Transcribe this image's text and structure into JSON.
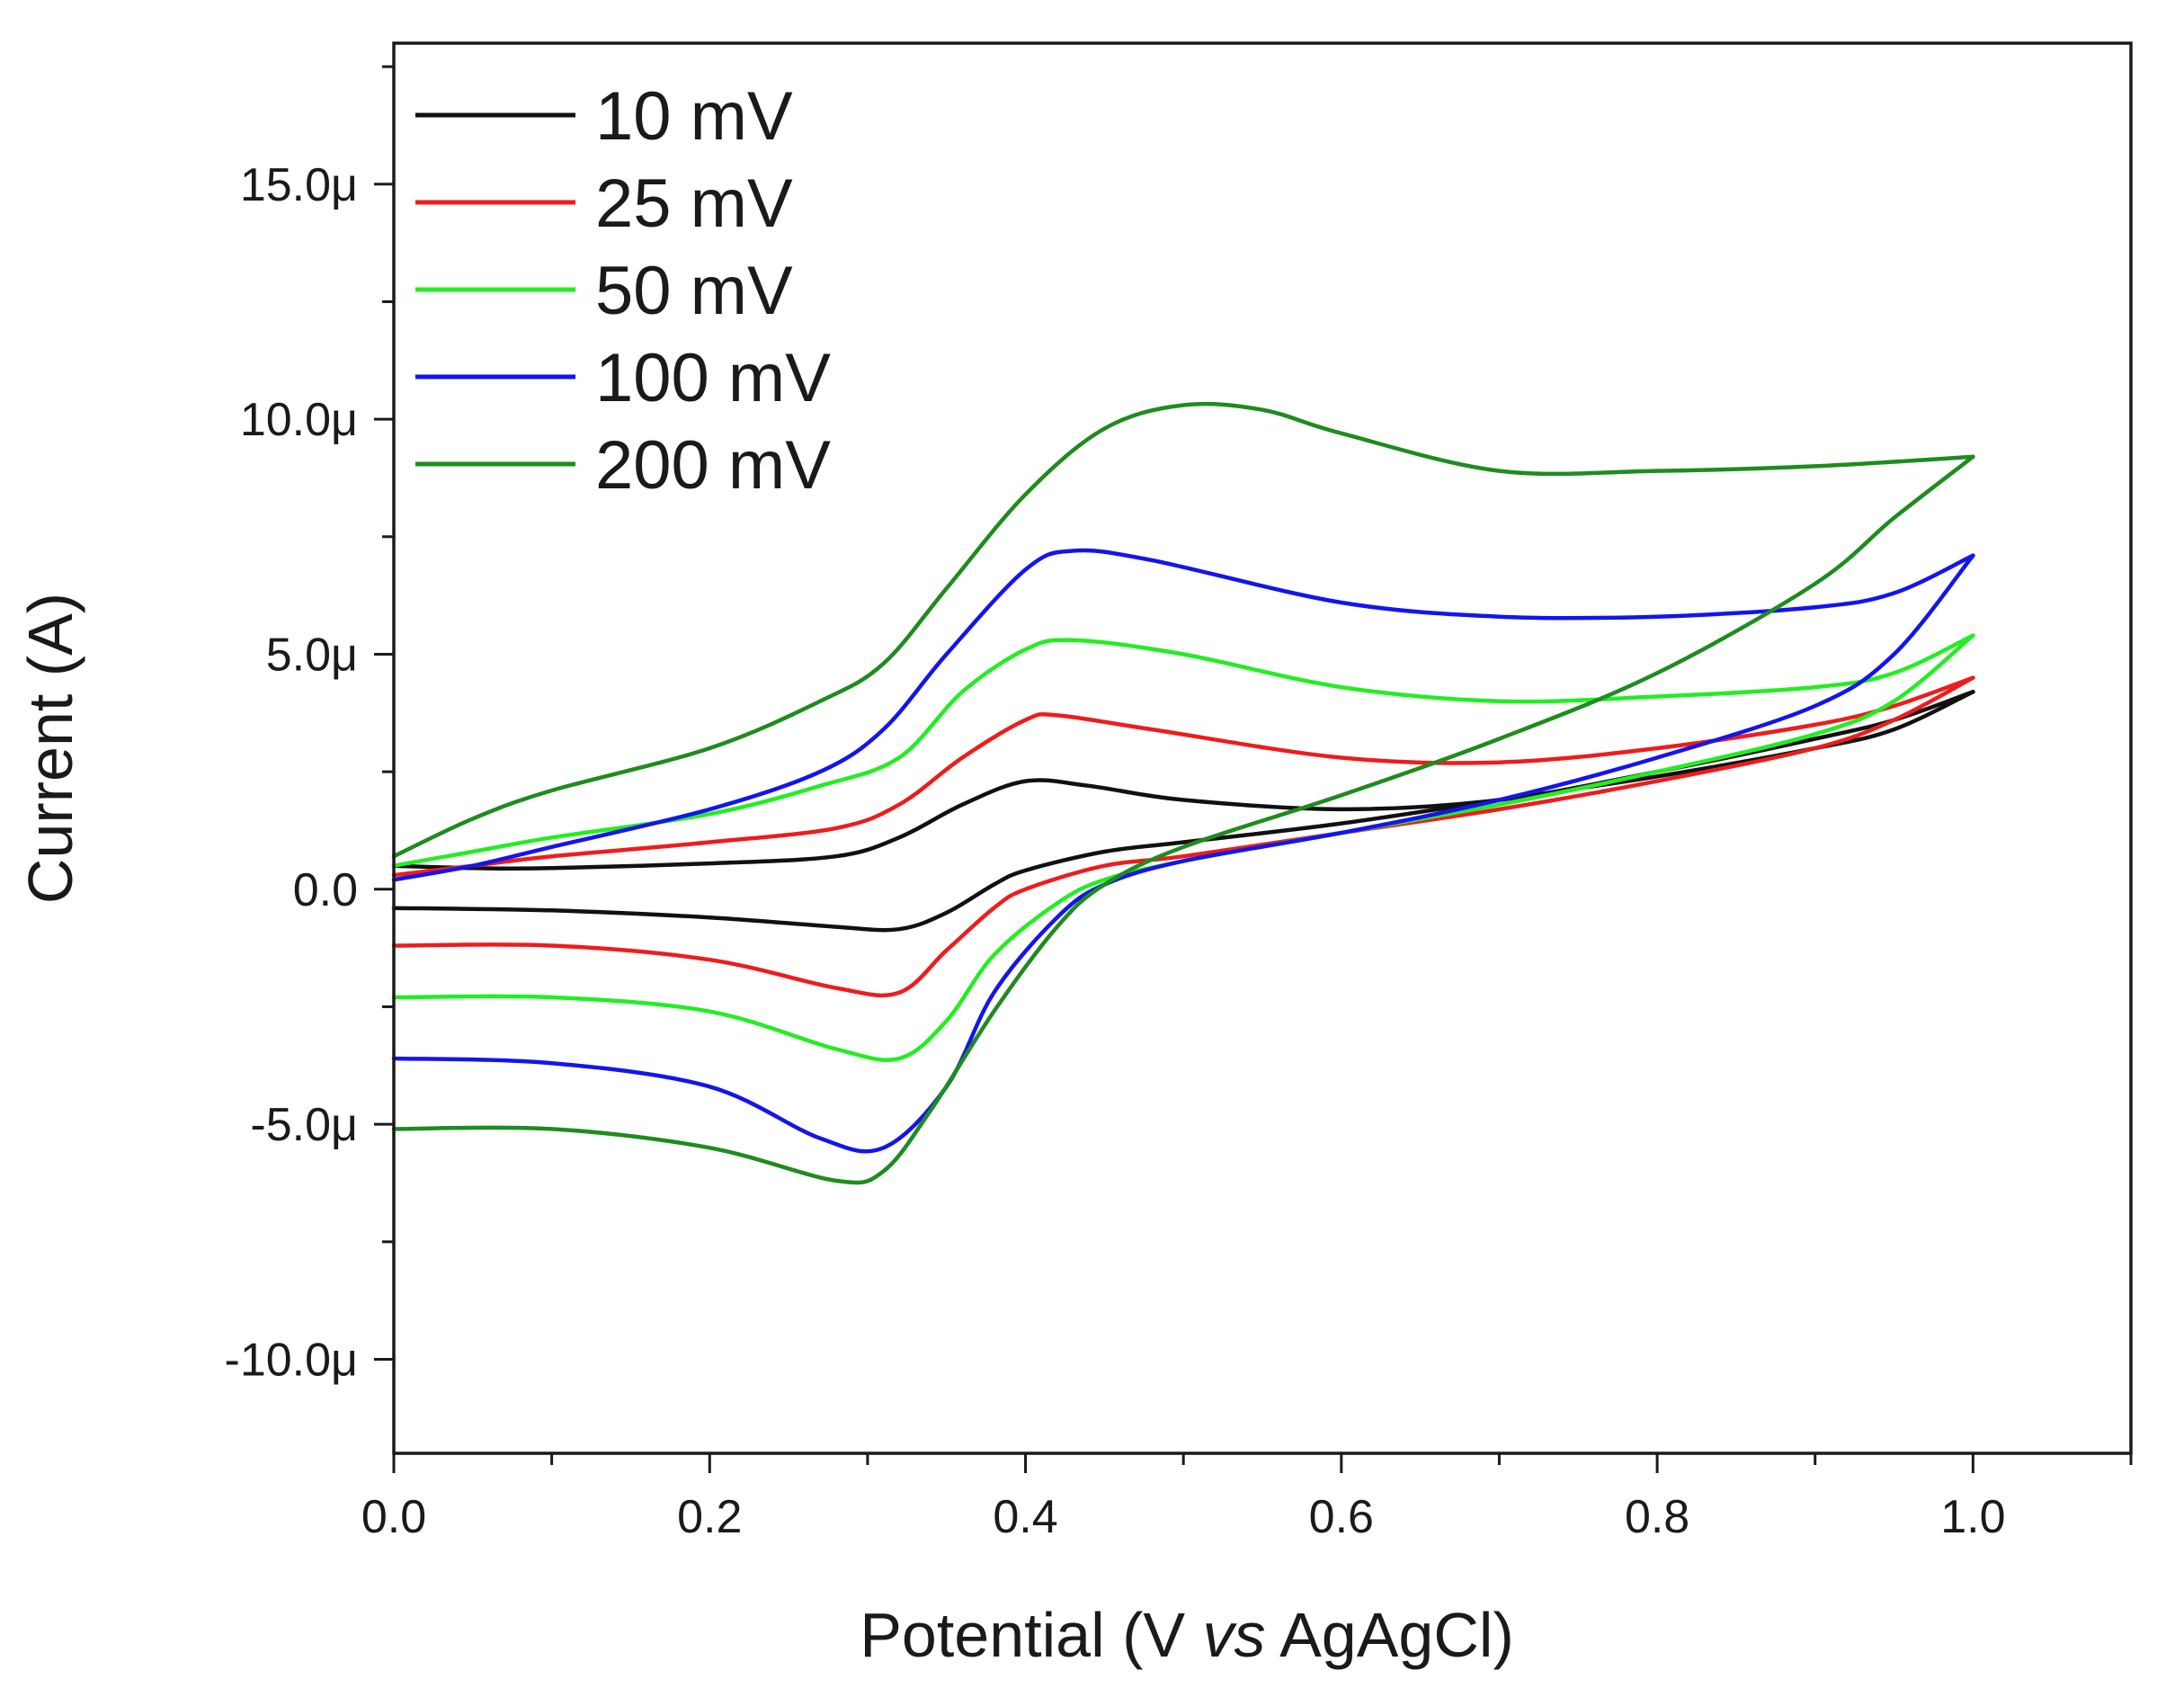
{
  "chart_data": {
    "type": "line",
    "title": "",
    "xlabel": {
      "prefix": "Potential (V ",
      "italic": "vs",
      "suffix": " AgAgCl)"
    },
    "ylabel": "Current (A)",
    "xlim": [
      0.0,
      1.1
    ],
    "ylim": [
      -12.0,
      18.0
    ],
    "x_ticks": [
      0.0,
      0.2,
      0.4,
      0.6,
      0.8,
      1.0
    ],
    "x_tick_labels": [
      "0.0",
      "0.2",
      "0.4",
      "0.6",
      "0.8",
      "1.0"
    ],
    "x_minor_ticks": [
      0.1,
      0.3,
      0.5,
      0.7,
      0.9,
      1.1
    ],
    "y_ticks": [
      15,
      10,
      5,
      0,
      -5,
      -10
    ],
    "y_tick_labels": [
      "15.0μ",
      "10.0μ",
      "5.0μ",
      "0.0",
      "-5.0μ",
      "-10.0μ"
    ],
    "y_minor_ticks": [
      17.5,
      12.5,
      7.5,
      2.5,
      -2.5,
      -7.5
    ],
    "y_unit": "μA",
    "grid": false,
    "legend_position": "top-left",
    "series": [
      {
        "name": "10 mV",
        "color": "#111111",
        "forward": [
          [
            0.0,
            0.5
          ],
          [
            0.05,
            0.45
          ],
          [
            0.1,
            0.45
          ],
          [
            0.2,
            0.55
          ],
          [
            0.28,
            0.7
          ],
          [
            0.32,
            1.1
          ],
          [
            0.36,
            1.8
          ],
          [
            0.4,
            2.3
          ],
          [
            0.44,
            2.2
          ],
          [
            0.5,
            1.9
          ],
          [
            0.6,
            1.7
          ],
          [
            0.7,
            1.9
          ],
          [
            0.8,
            2.5
          ],
          [
            0.9,
            3.2
          ],
          [
            0.95,
            3.6
          ],
          [
            1.0,
            4.2
          ]
        ],
        "reverse": [
          [
            1.0,
            4.2
          ],
          [
            0.95,
            3.4
          ],
          [
            0.9,
            3.0
          ],
          [
            0.8,
            2.4
          ],
          [
            0.7,
            1.9
          ],
          [
            0.6,
            1.4
          ],
          [
            0.5,
            1.0
          ],
          [
            0.45,
            0.8
          ],
          [
            0.4,
            0.4
          ],
          [
            0.38,
            0.1
          ],
          [
            0.35,
            -0.5
          ],
          [
            0.32,
            -0.85
          ],
          [
            0.28,
            -0.8
          ],
          [
            0.2,
            -0.6
          ],
          [
            0.1,
            -0.45
          ],
          [
            0.0,
            -0.4
          ]
        ]
      },
      {
        "name": "25 mV",
        "color": "#ee1c1c",
        "forward": [
          [
            0.0,
            0.3
          ],
          [
            0.05,
            0.5
          ],
          [
            0.1,
            0.7
          ],
          [
            0.2,
            1.0
          ],
          [
            0.28,
            1.3
          ],
          [
            0.32,
            1.8
          ],
          [
            0.36,
            2.8
          ],
          [
            0.4,
            3.6
          ],
          [
            0.42,
            3.7
          ],
          [
            0.48,
            3.4
          ],
          [
            0.6,
            2.8
          ],
          [
            0.7,
            2.7
          ],
          [
            0.8,
            3.0
          ],
          [
            0.9,
            3.5
          ],
          [
            0.95,
            3.9
          ],
          [
            1.0,
            4.5
          ]
        ],
        "reverse": [
          [
            1.0,
            4.5
          ],
          [
            0.95,
            3.6
          ],
          [
            0.9,
            3.0
          ],
          [
            0.8,
            2.3
          ],
          [
            0.7,
            1.7
          ],
          [
            0.6,
            1.2
          ],
          [
            0.5,
            0.7
          ],
          [
            0.45,
            0.5
          ],
          [
            0.4,
            0.0
          ],
          [
            0.38,
            -0.4
          ],
          [
            0.35,
            -1.3
          ],
          [
            0.32,
            -2.2
          ],
          [
            0.28,
            -2.1
          ],
          [
            0.2,
            -1.5
          ],
          [
            0.1,
            -1.2
          ],
          [
            0.0,
            -1.2
          ]
        ]
      },
      {
        "name": "50 mV",
        "color": "#22ee22",
        "forward": [
          [
            0.0,
            0.5
          ],
          [
            0.05,
            0.8
          ],
          [
            0.1,
            1.1
          ],
          [
            0.2,
            1.6
          ],
          [
            0.27,
            2.2
          ],
          [
            0.32,
            2.8
          ],
          [
            0.36,
            4.2
          ],
          [
            0.4,
            5.1
          ],
          [
            0.43,
            5.3
          ],
          [
            0.5,
            5.0
          ],
          [
            0.6,
            4.3
          ],
          [
            0.7,
            4.0
          ],
          [
            0.8,
            4.1
          ],
          [
            0.9,
            4.3
          ],
          [
            0.95,
            4.6
          ],
          [
            1.0,
            5.4
          ]
        ],
        "reverse": [
          [
            1.0,
            5.4
          ],
          [
            0.95,
            4.0
          ],
          [
            0.9,
            3.3
          ],
          [
            0.8,
            2.5
          ],
          [
            0.7,
            1.8
          ],
          [
            0.6,
            1.2
          ],
          [
            0.5,
            0.6
          ],
          [
            0.45,
            0.2
          ],
          [
            0.42,
            -0.3
          ],
          [
            0.38,
            -1.4
          ],
          [
            0.35,
            -2.8
          ],
          [
            0.32,
            -3.6
          ],
          [
            0.28,
            -3.4
          ],
          [
            0.2,
            -2.6
          ],
          [
            0.1,
            -2.3
          ],
          [
            0.0,
            -2.3
          ]
        ]
      },
      {
        "name": "100 mV",
        "color": "#1414ee",
        "forward": [
          [
            0.0,
            0.2
          ],
          [
            0.05,
            0.5
          ],
          [
            0.1,
            0.9
          ],
          [
            0.2,
            1.7
          ],
          [
            0.27,
            2.5
          ],
          [
            0.31,
            3.4
          ],
          [
            0.35,
            5.0
          ],
          [
            0.4,
            6.8
          ],
          [
            0.43,
            7.2
          ],
          [
            0.48,
            7.0
          ],
          [
            0.6,
            6.1
          ],
          [
            0.7,
            5.8
          ],
          [
            0.8,
            5.8
          ],
          [
            0.9,
            6.0
          ],
          [
            0.95,
            6.3
          ],
          [
            1.0,
            7.1
          ]
        ],
        "reverse": [
          [
            1.0,
            7.1
          ],
          [
            0.95,
            5.0
          ],
          [
            0.9,
            3.9
          ],
          [
            0.8,
            2.8
          ],
          [
            0.7,
            1.9
          ],
          [
            0.6,
            1.2
          ],
          [
            0.5,
            0.6
          ],
          [
            0.45,
            0.1
          ],
          [
            0.42,
            -0.6
          ],
          [
            0.38,
            -2.2
          ],
          [
            0.35,
            -4.2
          ],
          [
            0.31,
            -5.5
          ],
          [
            0.27,
            -5.3
          ],
          [
            0.2,
            -4.2
          ],
          [
            0.1,
            -3.7
          ],
          [
            0.0,
            -3.6
          ]
        ]
      },
      {
        "name": "200 mV",
        "color": "#1e8c1e",
        "forward": [
          [
            0.0,
            0.7
          ],
          [
            0.05,
            1.5
          ],
          [
            0.1,
            2.1
          ],
          [
            0.2,
            3.0
          ],
          [
            0.27,
            4.0
          ],
          [
            0.31,
            4.8
          ],
          [
            0.35,
            6.4
          ],
          [
            0.4,
            8.4
          ],
          [
            0.45,
            9.8
          ],
          [
            0.5,
            10.3
          ],
          [
            0.55,
            10.2
          ],
          [
            0.6,
            9.7
          ],
          [
            0.7,
            8.9
          ],
          [
            0.8,
            8.9
          ],
          [
            0.9,
            9.0
          ],
          [
            1.0,
            9.2
          ]
        ],
        "reverse": [
          [
            1.0,
            9.2
          ],
          [
            0.95,
            7.9
          ],
          [
            0.9,
            6.5
          ],
          [
            0.8,
            4.6
          ],
          [
            0.7,
            3.2
          ],
          [
            0.6,
            2.0
          ],
          [
            0.5,
            0.9
          ],
          [
            0.45,
            0.1
          ],
          [
            0.42,
            -0.8
          ],
          [
            0.38,
            -2.6
          ],
          [
            0.34,
            -4.7
          ],
          [
            0.31,
            -6.0
          ],
          [
            0.28,
            -6.2
          ],
          [
            0.2,
            -5.5
          ],
          [
            0.1,
            -5.1
          ],
          [
            0.0,
            -5.1
          ]
        ]
      }
    ]
  }
}
